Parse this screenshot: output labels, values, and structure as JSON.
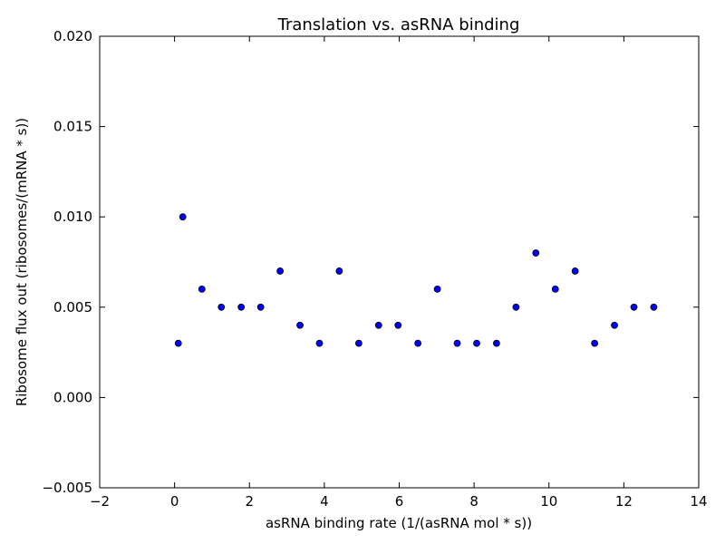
{
  "chart_data": {
    "type": "scatter",
    "title": "Translation vs. asRNA binding",
    "xlabel": "asRNA binding rate (1/(asRNA mol * s))",
    "ylabel": "Ribosome flux out (ribosomes/(mRNA * s))",
    "xlim": [
      -2,
      14
    ],
    "ylim": [
      -0.005,
      0.02
    ],
    "xticks": [
      -2,
      0,
      2,
      4,
      6,
      8,
      10,
      12,
      14
    ],
    "xtick_labels": [
      "−2",
      "0",
      "2",
      "4",
      "6",
      "8",
      "10",
      "12",
      "14"
    ],
    "yticks": [
      -0.005,
      0.0,
      0.005,
      0.01,
      0.015,
      0.02
    ],
    "ytick_labels": [
      "−0.005",
      "0.000",
      "0.005",
      "0.010",
      "0.015",
      "0.020"
    ],
    "grid": false,
    "marker_color": "#0000ff",
    "x": [
      0.1,
      0.22,
      0.73,
      1.25,
      1.78,
      2.3,
      2.82,
      3.35,
      3.87,
      4.4,
      4.92,
      5.45,
      5.97,
      6.5,
      7.02,
      7.55,
      8.07,
      8.6,
      9.12,
      9.65,
      10.17,
      10.7,
      11.22,
      11.75,
      12.27,
      12.8
    ],
    "y": [
      0.003,
      0.01,
      0.006,
      0.005,
      0.005,
      0.005,
      0.007,
      0.004,
      0.003,
      0.007,
      0.003,
      0.004,
      0.004,
      0.003,
      0.006,
      0.003,
      0.003,
      0.003,
      0.005,
      0.008,
      0.006,
      0.007,
      0.003,
      0.004,
      0.005,
      0.005
    ]
  }
}
